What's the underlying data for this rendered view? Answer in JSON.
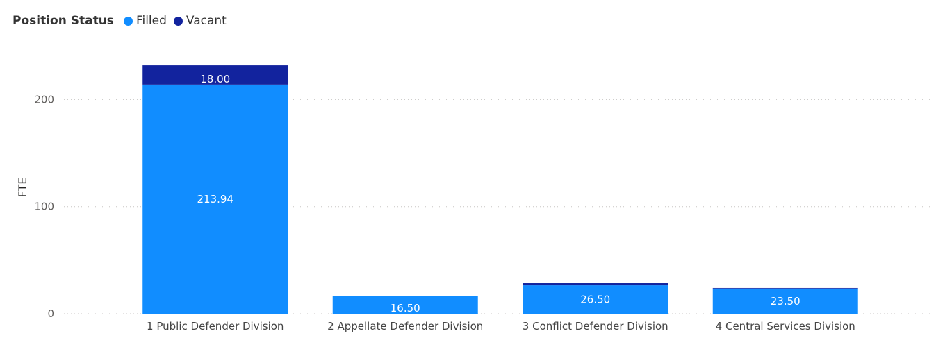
{
  "legend": {
    "title": "Position Status",
    "items": [
      {
        "label": "Filled",
        "color": "#118dff"
      },
      {
        "label": "Vacant",
        "color": "#12239e"
      }
    ]
  },
  "chart_data": {
    "type": "bar",
    "stacked": true,
    "categories": [
      "1 Public Defender Division",
      "2 Appellate Defender Division",
      "3 Conflict Defender Division",
      "4 Central Services Division"
    ],
    "series": [
      {
        "name": "Filled",
        "color": "#118dff",
        "values": [
          213.94,
          16.5,
          26.5,
          23.5
        ]
      },
      {
        "name": "Vacant",
        "color": "#12239e",
        "values": [
          18.0,
          0,
          2.0,
          0.5
        ]
      }
    ],
    "data_labels": [
      [
        "213.94",
        "16.50",
        "26.50",
        "23.50"
      ],
      [
        "18.00",
        "",
        "",
        ""
      ]
    ],
    "title": "",
    "xlabel": "",
    "ylabel": "FTE",
    "ylim": [
      0,
      232
    ],
    "yticks": [
      0,
      100,
      200
    ],
    "grid": true,
    "legend_position": "top-left"
  }
}
